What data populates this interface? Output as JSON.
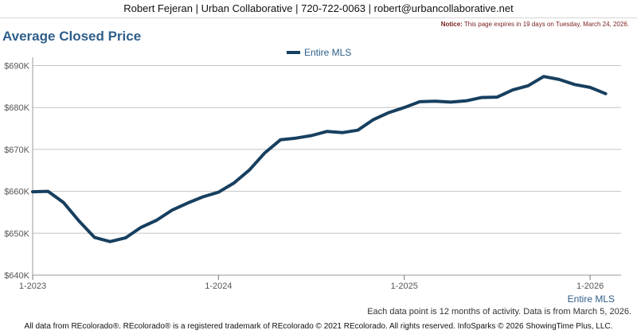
{
  "header": {
    "contact_line": "Robert Fejeran | Urban Collaborative | 720-722-0063 | robert@urbancollaborative.net"
  },
  "notice": {
    "label": "Notice:",
    "text": "This page expires in 19 days on Tuesday, March 24, 2026."
  },
  "footer": {
    "note": "Each data point is 12 months of activity. Data is from March 5, 2026.",
    "copyright": "All data from REcolorado®. REcolorado® is a registered trademark of REcolorado © 2021 REcolorado. All rights reserved. InfoSparks © 2026 ShowingTime Plus, LLC."
  },
  "chart_data": {
    "type": "line",
    "title": "Average Closed Price",
    "legend_position": "top-center",
    "grid": true,
    "x_axis_title": "Entire MLS",
    "x_ticks": [
      "1-2023",
      "1-2024",
      "1-2025",
      "1-2026"
    ],
    "y_ticks": [
      "$640K",
      "$650K",
      "$660K",
      "$670K",
      "$680K",
      "$690K"
    ],
    "ylim": [
      640000,
      692000
    ],
    "x_range": [
      "2023-01",
      "2026-03"
    ],
    "series": [
      {
        "name": "Entire MLS",
        "color": "#173f5f",
        "x": [
          "2023-01",
          "2023-02",
          "2023-03",
          "2023-04",
          "2023-05",
          "2023-06",
          "2023-07",
          "2023-08",
          "2023-09",
          "2023-10",
          "2023-11",
          "2023-12",
          "2024-01",
          "2024-02",
          "2024-03",
          "2024-04",
          "2024-05",
          "2024-06",
          "2024-07",
          "2024-08",
          "2024-09",
          "2024-10",
          "2024-11",
          "2024-12",
          "2025-01",
          "2025-02",
          "2025-03",
          "2025-04",
          "2025-05",
          "2025-06",
          "2025-07",
          "2025-08",
          "2025-09",
          "2025-10",
          "2025-11",
          "2025-12",
          "2026-01",
          "2026-02"
        ],
        "values": [
          659900,
          660000,
          657300,
          652900,
          649000,
          648000,
          648900,
          651400,
          653100,
          655500,
          657200,
          658700,
          659800,
          662000,
          665100,
          669200,
          672300,
          672700,
          673300,
          674300,
          674000,
          674600,
          677100,
          678800,
          680000,
          681400,
          681500,
          681300,
          681600,
          682400,
          682500,
          684200,
          685200,
          687400,
          686700,
          685500,
          684800,
          683300
        ]
      }
    ]
  }
}
